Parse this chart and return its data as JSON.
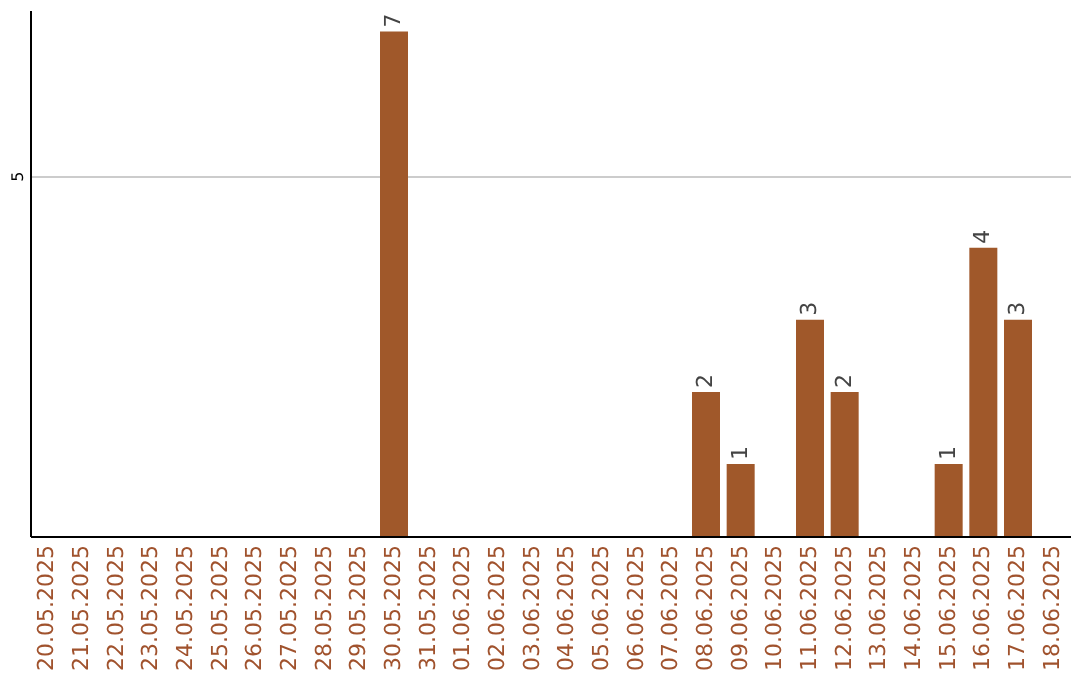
{
  "chart_data": {
    "type": "bar",
    "categories": [
      "20.05.2025",
      "21.05.2025",
      "22.05.2025",
      "23.05.2025",
      "24.05.2025",
      "25.05.2025",
      "26.05.2025",
      "27.05.2025",
      "28.05.2025",
      "29.05.2025",
      "30.05.2025",
      "31.05.2025",
      "01.06.2025",
      "02.06.2025",
      "03.06.2025",
      "04.06.2025",
      "05.06.2025",
      "06.06.2025",
      "07.06.2025",
      "08.06.2025",
      "09.06.2025",
      "10.06.2025",
      "11.06.2025",
      "12.06.2025",
      "13.06.2025",
      "14.06.2025",
      "15.06.2025",
      "16.06.2025",
      "17.06.2025",
      "18.06.2025"
    ],
    "values": [
      0,
      0,
      0,
      0,
      0,
      0,
      0,
      0,
      0,
      0,
      7,
      0,
      0,
      0,
      0,
      0,
      0,
      0,
      0,
      2,
      1,
      0,
      3,
      2,
      0,
      0,
      1,
      4,
      3,
      0
    ],
    "value_labels": [
      null,
      null,
      null,
      null,
      null,
      null,
      null,
      null,
      null,
      null,
      "7",
      null,
      null,
      null,
      null,
      null,
      null,
      null,
      null,
      "2",
      "1",
      null,
      "3",
      "2",
      null,
      null,
      "1",
      "4",
      "3",
      null
    ],
    "color": "#a0582a",
    "ylim": [
      0,
      7.3
    ],
    "yticks": [
      5
    ],
    "grid": "y"
  }
}
